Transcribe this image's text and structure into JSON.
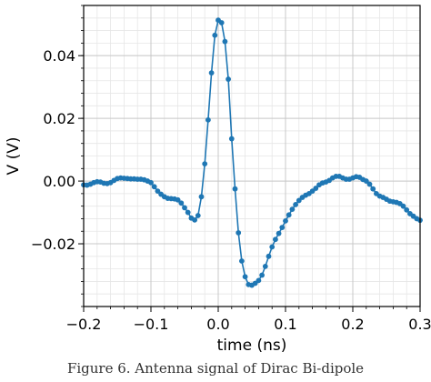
{
  "caption": "Figure 6. Antenna signal of Dirac Bi-dipole",
  "chart_data": {
    "type": "line",
    "title": "",
    "xlabel": "time (ns)",
    "ylabel": "V (V)",
    "xlim": [
      -0.2,
      0.3
    ],
    "ylim": [
      -0.04,
      0.056
    ],
    "xticks": [
      -0.2,
      -0.1,
      0.0,
      0.1,
      0.2,
      0.3
    ],
    "xtick_labels": [
      "−0.2",
      "−0.1",
      "0.0",
      "0.1",
      "0.2",
      "0.3"
    ],
    "yticks": [
      -0.02,
      0.0,
      0.02,
      0.04
    ],
    "ytick_labels": [
      "−0.02",
      "0.00",
      "0.02",
      "0.04"
    ],
    "grid": true,
    "minor_grid": true,
    "marker": "circle",
    "color": "#1f77b4",
    "series": [
      {
        "x": [
          -0.2,
          -0.195,
          -0.19,
          -0.185,
          -0.18,
          -0.175,
          -0.17,
          -0.165,
          -0.16,
          -0.155,
          -0.15,
          -0.145,
          -0.14,
          -0.135,
          -0.13,
          -0.125,
          -0.12,
          -0.115,
          -0.11,
          -0.105,
          -0.1,
          -0.095,
          -0.09,
          -0.085,
          -0.08,
          -0.075,
          -0.07,
          -0.065,
          -0.06,
          -0.055,
          -0.05,
          -0.045,
          -0.04,
          -0.035,
          -0.03,
          -0.025,
          -0.02,
          -0.015,
          -0.01,
          -0.005,
          0.0,
          0.005,
          0.01,
          0.015,
          0.02,
          0.025,
          0.03,
          0.035,
          0.04,
          0.045,
          0.05,
          0.055,
          0.06,
          0.065,
          0.07,
          0.075,
          0.08,
          0.085,
          0.09,
          0.095,
          0.1,
          0.105,
          0.11,
          0.115,
          0.12,
          0.125,
          0.13,
          0.135,
          0.14,
          0.145,
          0.15,
          0.155,
          0.16,
          0.165,
          0.17,
          0.175,
          0.18,
          0.185,
          0.19,
          0.195,
          0.2,
          0.205,
          0.21,
          0.215,
          0.22,
          0.225,
          0.23,
          0.235,
          0.24,
          0.245,
          0.25,
          0.255,
          0.26,
          0.265,
          0.27,
          0.275,
          0.28,
          0.285,
          0.29,
          0.295,
          0.3
        ],
        "y": [
          -0.0012,
          -0.0013,
          -0.001,
          -0.0005,
          -0.0002,
          -0.0003,
          -0.0007,
          -0.0008,
          -0.0005,
          0.0002,
          0.0008,
          0.001,
          0.0009,
          0.0008,
          0.0007,
          0.0007,
          0.0006,
          0.0006,
          0.0004,
          0.0,
          -0.0005,
          -0.0018,
          -0.0032,
          -0.0042,
          -0.005,
          -0.0055,
          -0.0056,
          -0.0057,
          -0.006,
          -0.007,
          -0.0085,
          -0.01,
          -0.0118,
          -0.0124,
          -0.011,
          -0.005,
          0.0055,
          0.0195,
          0.0345,
          0.0465,
          0.0513,
          0.0505,
          0.0445,
          0.0325,
          0.0135,
          -0.0025,
          -0.0165,
          -0.0255,
          -0.0305,
          -0.033,
          -0.0332,
          -0.0326,
          -0.0317,
          -0.03,
          -0.0272,
          -0.024,
          -0.021,
          -0.0186,
          -0.0167,
          -0.0148,
          -0.0127,
          -0.0108,
          -0.009,
          -0.0075,
          -0.0062,
          -0.0052,
          -0.0045,
          -0.004,
          -0.0032,
          -0.0023,
          -0.0012,
          -0.0006,
          -0.0003,
          0.0002,
          0.001,
          0.0015,
          0.0015,
          0.001,
          0.0006,
          0.0006,
          0.001,
          0.0014,
          0.0012,
          0.0005,
          0.0,
          -0.001,
          -0.0025,
          -0.004,
          -0.0048,
          -0.0052,
          -0.0058,
          -0.0064,
          -0.0066,
          -0.0068,
          -0.0072,
          -0.008,
          -0.0092,
          -0.0104,
          -0.0112,
          -0.012,
          -0.0125
        ]
      }
    ]
  }
}
